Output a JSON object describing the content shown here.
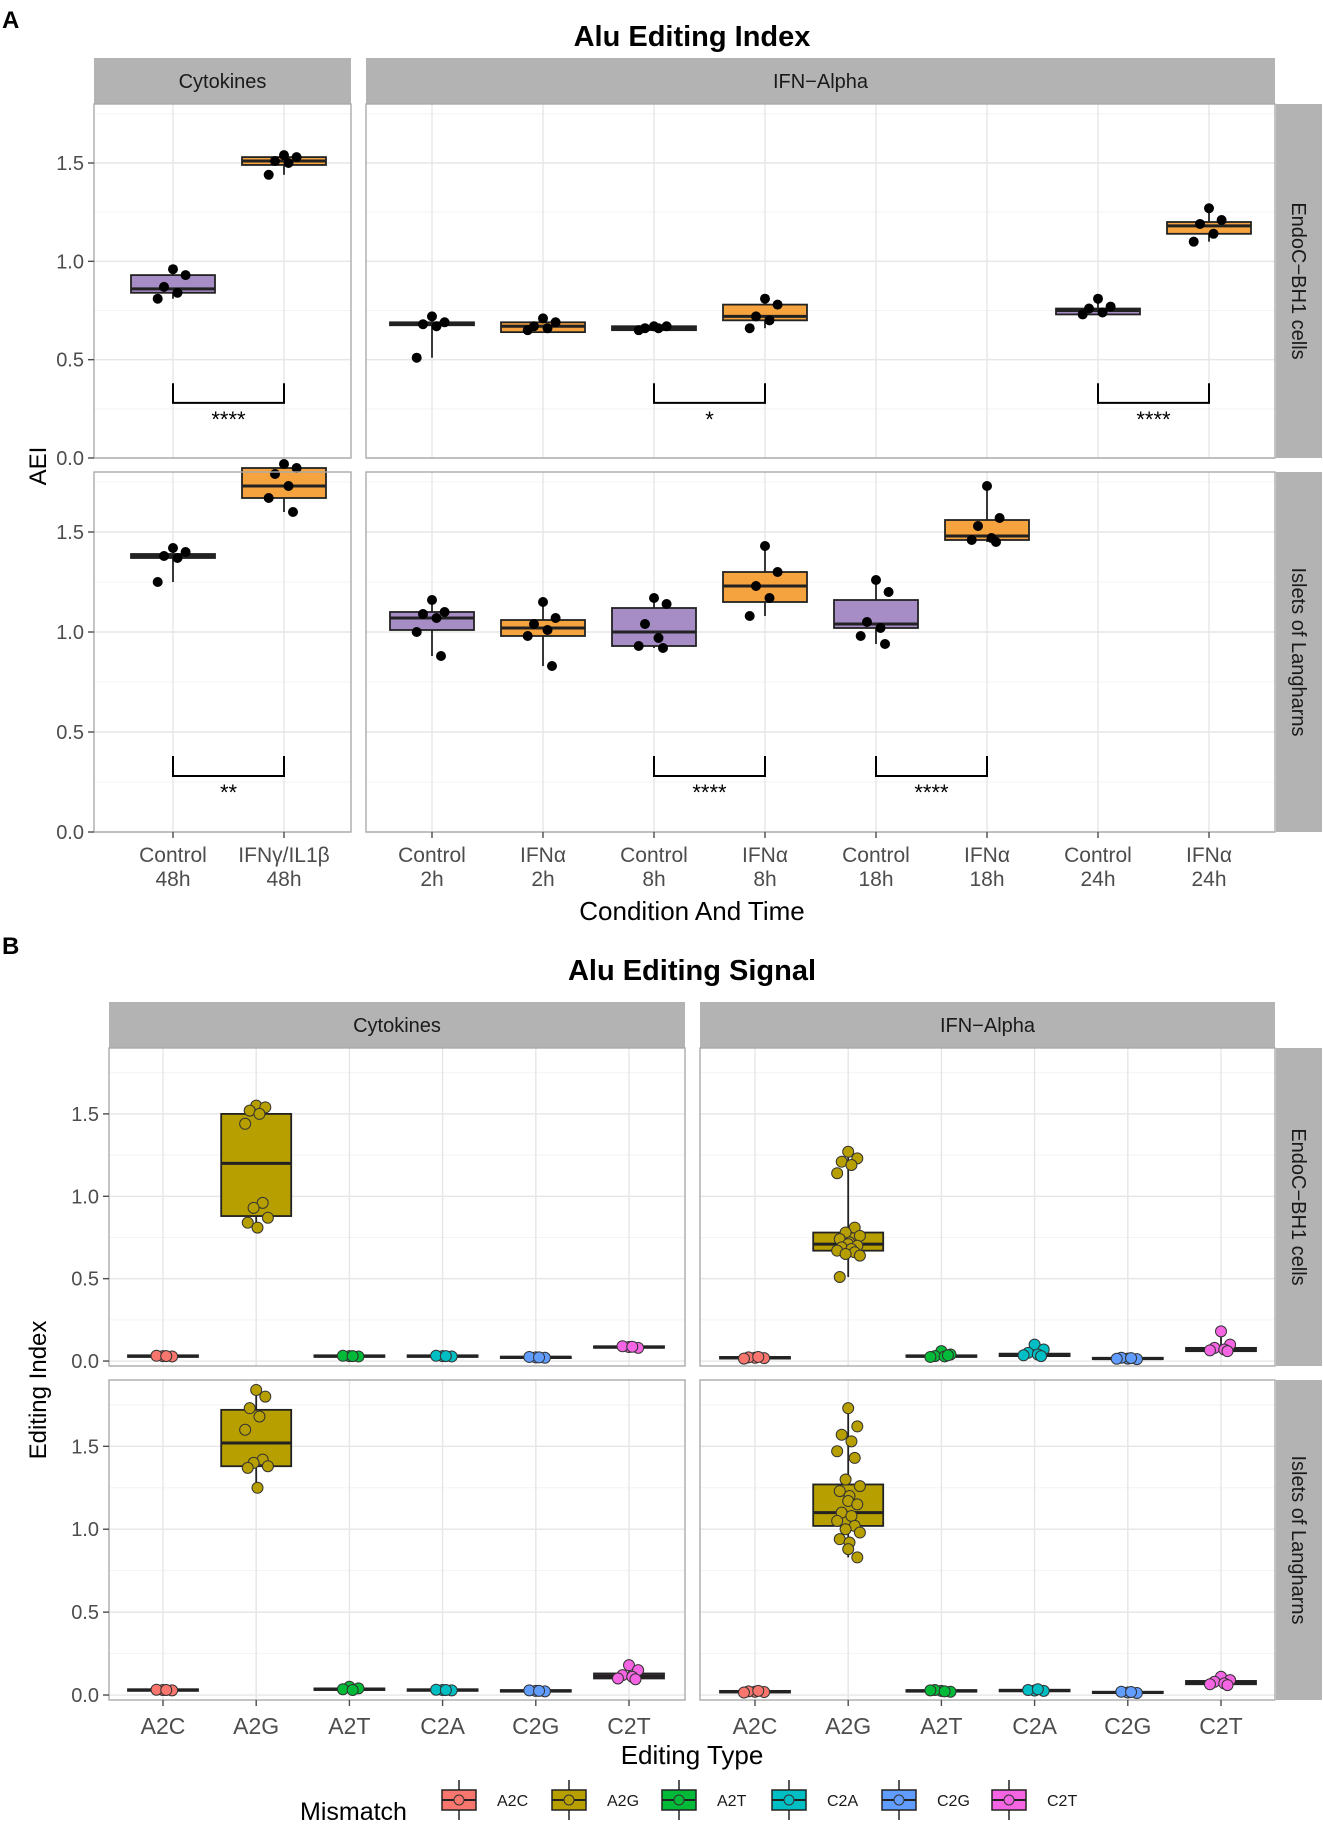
{
  "panel_labels": {
    "a": "A",
    "b": "B"
  },
  "chart_data": [
    {
      "type": "boxplot",
      "panel": "A",
      "title": "Alu Editing Index",
      "xlabel": "Condition And Time",
      "ylabel": "AEI",
      "ylim": [
        0,
        1.8
      ],
      "yticks": [
        0.0,
        0.5,
        1.0,
        1.5
      ],
      "ytick_labels": [
        "0.0",
        "0.5",
        "1.0",
        "1.5"
      ],
      "fill_colors": {
        "control": "#a68dc6",
        "treated": "#f5a33e"
      },
      "facet_cols": [
        {
          "label": "Cytokines",
          "categories": [
            [
              "Control",
              "48h"
            ],
            [
              "IFNγ/IL1β",
              "48h"
            ]
          ]
        },
        {
          "label": "IFN−Alpha",
          "categories": [
            [
              "Control",
              "2h"
            ],
            [
              "IFNα",
              "2h"
            ],
            [
              "Control",
              "8h"
            ],
            [
              "IFNα",
              "8h"
            ],
            [
              "Control",
              "18h"
            ],
            [
              "IFNα",
              "18h"
            ],
            [
              "Control",
              "24h"
            ],
            [
              "IFNα",
              "24h"
            ]
          ]
        }
      ],
      "facet_rows": [
        "EndoC−BH1 cells",
        "Islets of Langharns"
      ],
      "boxes": [
        [
          [
            {
              "q1": 0.84,
              "med": 0.86,
              "q3": 0.93,
              "lo": 0.81,
              "hi": 0.96,
              "pts": [
                0.96,
                0.93,
                0.87,
                0.84,
                0.81
              ]
            },
            {
              "q1": 1.49,
              "med": 1.51,
              "q3": 1.53,
              "lo": 1.44,
              "hi": 1.55,
              "pts": [
                1.54,
                1.53,
                1.51,
                1.5,
                1.44
              ]
            }
          ],
          [
            {
              "q1": 0.675,
              "med": 0.68,
              "q3": 0.69,
              "lo": 0.51,
              "hi": 0.72,
              "pts": [
                0.72,
                0.69,
                0.68,
                0.67,
                0.51
              ]
            },
            {
              "q1": 0.64,
              "med": 0.67,
              "q3": 0.69,
              "lo": 0.64,
              "hi": 0.71,
              "pts": [
                0.71,
                0.69,
                0.67,
                0.66,
                0.65
              ]
            },
            {
              "q1": 0.65,
              "med": 0.66,
              "q3": 0.67,
              "lo": 0.65,
              "hi": 0.67,
              "pts": [
                0.67,
                0.67,
                0.66,
                0.66,
                0.65
              ]
            },
            {
              "q1": 0.7,
              "med": 0.72,
              "q3": 0.78,
              "lo": 0.66,
              "hi": 0.81,
              "pts": [
                0.81,
                0.78,
                0.72,
                0.7,
                0.66
              ]
            },
            null,
            null,
            {
              "q1": 0.73,
              "med": 0.75,
              "q3": 0.76,
              "lo": 0.73,
              "hi": 0.81,
              "pts": [
                0.81,
                0.77,
                0.76,
                0.74,
                0.73
              ]
            },
            {
              "q1": 1.14,
              "med": 1.18,
              "q3": 1.2,
              "lo": 1.1,
              "hi": 1.27,
              "pts": [
                1.27,
                1.21,
                1.19,
                1.14,
                1.1
              ]
            }
          ]
        ],
        [
          [
            {
              "q1": 1.37,
              "med": 1.38,
              "q3": 1.39,
              "lo": 1.25,
              "hi": 1.42,
              "pts": [
                1.42,
                1.4,
                1.38,
                1.37,
                1.25
              ]
            },
            {
              "q1": 1.67,
              "med": 1.73,
              "q3": 1.82,
              "lo": 1.6,
              "hi": 1.84,
              "pts": [
                1.84,
                1.82,
                1.79,
                1.73,
                1.67,
                1.6
              ]
            }
          ],
          [
            {
              "q1": 1.01,
              "med": 1.07,
              "q3": 1.1,
              "lo": 0.88,
              "hi": 1.16,
              "pts": [
                1.16,
                1.1,
                1.09,
                1.07,
                1.0,
                0.88
              ]
            },
            {
              "q1": 0.98,
              "med": 1.02,
              "q3": 1.06,
              "lo": 0.83,
              "hi": 1.15,
              "pts": [
                1.15,
                1.07,
                1.04,
                1.01,
                0.98,
                0.83
              ]
            },
            {
              "q1": 0.93,
              "med": 1.0,
              "q3": 1.12,
              "lo": 0.92,
              "hi": 1.17,
              "pts": [
                1.17,
                1.14,
                1.04,
                0.97,
                0.93,
                0.92
              ]
            },
            {
              "q1": 1.15,
              "med": 1.23,
              "q3": 1.3,
              "lo": 1.08,
              "hi": 1.43,
              "pts": [
                1.43,
                1.3,
                1.23,
                1.17,
                1.08
              ]
            },
            {
              "q1": 1.02,
              "med": 1.04,
              "q3": 1.16,
              "lo": 0.94,
              "hi": 1.26,
              "pts": [
                1.26,
                1.2,
                1.05,
                1.02,
                0.98,
                0.94
              ]
            },
            {
              "q1": 1.46,
              "med": 1.48,
              "q3": 1.56,
              "lo": 1.45,
              "hi": 1.73,
              "pts": [
                1.73,
                1.57,
                1.53,
                1.47,
                1.46,
                1.45
              ]
            },
            null,
            null
          ]
        ]
      ],
      "significance": [
        {
          "row": 0,
          "col": 0,
          "from": 0,
          "to": 1,
          "label": "****"
        },
        {
          "row": 0,
          "col": 1,
          "from": 2,
          "to": 3,
          "label": "*"
        },
        {
          "row": 0,
          "col": 1,
          "from": 6,
          "to": 7,
          "label": "****"
        },
        {
          "row": 1,
          "col": 0,
          "from": 0,
          "to": 1,
          "label": "**"
        },
        {
          "row": 1,
          "col": 1,
          "from": 2,
          "to": 3,
          "label": "****"
        },
        {
          "row": 1,
          "col": 1,
          "from": 4,
          "to": 5,
          "label": "****"
        }
      ],
      "bracket_y": 0.28,
      "bracket_drop": 0.1
    },
    {
      "type": "boxplot",
      "panel": "B",
      "title": "Alu Editing Signal",
      "xlabel": "Editing Type",
      "ylabel": "Editing Index",
      "ylim": [
        -0.03,
        1.9
      ],
      "yticks": [
        0.0,
        0.5,
        1.0,
        1.5
      ],
      "ytick_labels": [
        "0.0",
        "0.5",
        "1.0",
        "1.5"
      ],
      "categories": [
        "A2C",
        "A2G",
        "A2T",
        "C2A",
        "C2G",
        "C2T"
      ],
      "mismatch_colors": {
        "A2C": "#f8766d",
        "A2G": "#b79f00",
        "A2T": "#00ba38",
        "C2A": "#00bfc4",
        "C2G": "#619cff",
        "C2T": "#f564e3"
      },
      "facet_cols": [
        {
          "label": "Cytokines"
        },
        {
          "label": "IFN−Alpha"
        }
      ],
      "facet_rows": [
        "EndoC−BH1 cells",
        "Islets of Langharns"
      ],
      "boxes": [
        [
          [
            {
              "q1": 0.025,
              "med": 0.03,
              "q3": 0.035,
              "lo": 0.02,
              "hi": 0.04,
              "pts": [
                0.03,
                0.028,
                0.032,
                0.03
              ]
            },
            {
              "q1": 0.88,
              "med": 1.2,
              "q3": 1.5,
              "lo": 0.81,
              "hi": 1.55,
              "pts": [
                1.55,
                1.54,
                1.52,
                1.5,
                1.44,
                0.96,
                0.93,
                0.87,
                0.84,
                0.81
              ]
            },
            {
              "q1": 0.025,
              "med": 0.03,
              "q3": 0.035,
              "lo": 0.02,
              "hi": 0.04,
              "pts": [
                0.03,
                0.028,
                0.032,
                0.03
              ]
            },
            {
              "q1": 0.025,
              "med": 0.03,
              "q3": 0.035,
              "lo": 0.02,
              "hi": 0.04,
              "pts": [
                0.03,
                0.028,
                0.032,
                0.03
              ]
            },
            {
              "q1": 0.018,
              "med": 0.022,
              "q3": 0.027,
              "lo": 0.015,
              "hi": 0.03,
              "pts": [
                0.022,
                0.02,
                0.025,
                0.022
              ]
            },
            {
              "q1": 0.08,
              "med": 0.085,
              "q3": 0.09,
              "lo": 0.075,
              "hi": 0.095,
              "pts": [
                0.085,
                0.08,
                0.09,
                0.087
              ]
            }
          ],
          [
            {
              "q1": 0.015,
              "med": 0.02,
              "q3": 0.025,
              "lo": 0.01,
              "hi": 0.03,
              "pts": [
                0.02,
                0.018,
                0.022,
                0.025,
                0.015
              ]
            },
            {
              "q1": 0.67,
              "med": 0.71,
              "q3": 0.78,
              "lo": 0.51,
              "hi": 1.27,
              "pts": [
                1.27,
                1.23,
                1.21,
                1.19,
                1.14,
                0.81,
                0.78,
                0.76,
                0.74,
                0.72,
                0.71,
                0.7,
                0.69,
                0.68,
                0.67,
                0.66,
                0.65,
                0.64,
                0.51
              ]
            },
            {
              "q1": 0.025,
              "med": 0.03,
              "q3": 0.035,
              "lo": 0.02,
              "hi": 0.06,
              "pts": [
                0.06,
                0.04,
                0.03,
                0.028,
                0.025,
                0.035
              ]
            },
            {
              "q1": 0.03,
              "med": 0.04,
              "q3": 0.045,
              "lo": 0.02,
              "hi": 0.1,
              "pts": [
                0.1,
                0.07,
                0.05,
                0.04,
                0.035,
                0.03
              ]
            },
            {
              "q1": 0.012,
              "med": 0.015,
              "q3": 0.02,
              "lo": 0.01,
              "hi": 0.025,
              "pts": [
                0.015,
                0.012,
                0.02,
                0.018,
                0.014
              ]
            },
            {
              "q1": 0.06,
              "med": 0.07,
              "q3": 0.08,
              "lo": 0.05,
              "hi": 0.18,
              "pts": [
                0.18,
                0.1,
                0.08,
                0.07,
                0.065,
                0.06
              ]
            }
          ]
        ],
        [
          [
            {
              "q1": 0.025,
              "med": 0.03,
              "q3": 0.035,
              "lo": 0.02,
              "hi": 0.04,
              "pts": [
                0.03,
                0.028,
                0.032,
                0.03
              ]
            },
            {
              "q1": 1.38,
              "med": 1.52,
              "q3": 1.72,
              "lo": 1.25,
              "hi": 1.84,
              "pts": [
                1.84,
                1.8,
                1.73,
                1.68,
                1.6,
                1.42,
                1.4,
                1.38,
                1.37,
                1.25
              ]
            },
            {
              "q1": 0.03,
              "med": 0.035,
              "q3": 0.04,
              "lo": 0.025,
              "hi": 0.05,
              "pts": [
                0.05,
                0.04,
                0.035,
                0.03
              ]
            },
            {
              "q1": 0.025,
              "med": 0.03,
              "q3": 0.035,
              "lo": 0.02,
              "hi": 0.04,
              "pts": [
                0.03,
                0.028,
                0.032,
                0.03
              ]
            },
            {
              "q1": 0.02,
              "med": 0.025,
              "q3": 0.03,
              "lo": 0.015,
              "hi": 0.035,
              "pts": [
                0.025,
                0.022,
                0.028,
                0.025
              ]
            },
            {
              "q1": 0.1,
              "med": 0.115,
              "q3": 0.13,
              "lo": 0.09,
              "hi": 0.18,
              "pts": [
                0.18,
                0.15,
                0.12,
                0.11,
                0.1,
                0.095
              ]
            }
          ],
          [
            {
              "q1": 0.015,
              "med": 0.02,
              "q3": 0.025,
              "lo": 0.01,
              "hi": 0.03,
              "pts": [
                0.02,
                0.018,
                0.022,
                0.025,
                0.015
              ]
            },
            {
              "q1": 1.02,
              "med": 1.1,
              "q3": 1.27,
              "lo": 0.83,
              "hi": 1.73,
              "pts": [
                1.73,
                1.62,
                1.57,
                1.53,
                1.47,
                1.43,
                1.3,
                1.26,
                1.23,
                1.2,
                1.17,
                1.15,
                1.1,
                1.08,
                1.05,
                1.02,
                1.0,
                0.98,
                0.94,
                0.92,
                0.88,
                0.83
              ]
            },
            {
              "q1": 0.02,
              "med": 0.025,
              "q3": 0.03,
              "lo": 0.015,
              "hi": 0.035,
              "pts": [
                0.025,
                0.02,
                0.03,
                0.022,
                0.028
              ]
            },
            {
              "q1": 0.022,
              "med": 0.027,
              "q3": 0.032,
              "lo": 0.018,
              "hi": 0.04,
              "pts": [
                0.027,
                0.025,
                0.03,
                0.035
              ]
            },
            {
              "q1": 0.012,
              "med": 0.015,
              "q3": 0.02,
              "lo": 0.01,
              "hi": 0.025,
              "pts": [
                0.015,
                0.012,
                0.02,
                0.018
              ]
            },
            {
              "q1": 0.065,
              "med": 0.075,
              "q3": 0.085,
              "lo": 0.055,
              "hi": 0.11,
              "pts": [
                0.11,
                0.09,
                0.08,
                0.07,
                0.065,
                0.06
              ]
            }
          ]
        ]
      ],
      "legend": {
        "title": "Mismatch",
        "entries": [
          "A2C",
          "A2G",
          "A2T",
          "C2A",
          "C2G",
          "C2T"
        ],
        "position": "bottom"
      }
    }
  ]
}
